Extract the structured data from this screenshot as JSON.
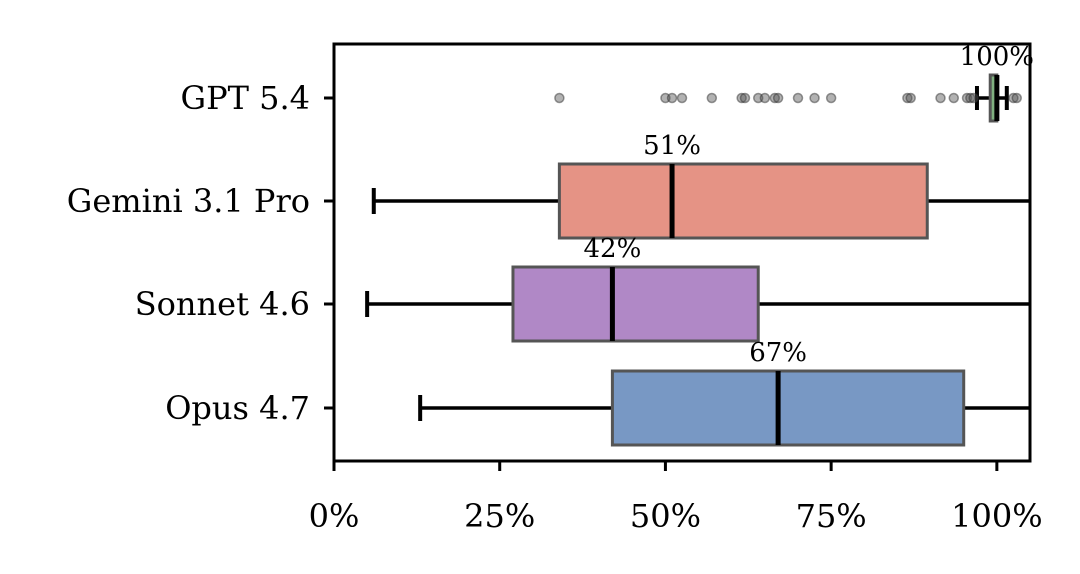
{
  "chart_data": {
    "type": "boxplot",
    "orientation": "horizontal",
    "xlim": [
      0,
      105
    ],
    "x_ticks": [
      0,
      25,
      50,
      75,
      100
    ],
    "x_tick_labels": [
      "0%",
      "25%",
      "50%",
      "75%",
      "100%"
    ],
    "categories": [
      "GPT 5.4",
      "Gemini 3.1 Pro",
      "Sonnet 4.6",
      "Opus 4.7"
    ],
    "boxes": [
      {
        "category": "GPT 5.4",
        "color": "#7fb07f",
        "whisker_low": 97,
        "q1": 99,
        "median": 100,
        "q3": 100,
        "whisker_high": 101.5,
        "median_label": "100%",
        "outliers": [
          34,
          50,
          51,
          52.5,
          57,
          61.5,
          62,
          64,
          65,
          66.5,
          67,
          70,
          72.5,
          75,
          86.5,
          87,
          91.5,
          93.5,
          95.5,
          96,
          96.5,
          102.5,
          103
        ]
      },
      {
        "category": "Gemini 3.1 Pro",
        "color": "#e59385",
        "whisker_low": 6,
        "q1": 34,
        "median": 51,
        "q3": 89.5,
        "whisker_high": 105,
        "median_label": "51%",
        "outliers": []
      },
      {
        "category": "Sonnet 4.6",
        "color": "#b088c6",
        "whisker_low": 5,
        "q1": 27,
        "median": 42,
        "q3": 64,
        "whisker_high": 105,
        "median_label": "42%",
        "outliers": []
      },
      {
        "category": "Opus 4.7",
        "color": "#7898c4",
        "whisker_low": 13,
        "q1": 42,
        "median": 67,
        "q3": 95,
        "whisker_high": 105,
        "median_label": "67%",
        "outliers": []
      }
    ]
  }
}
